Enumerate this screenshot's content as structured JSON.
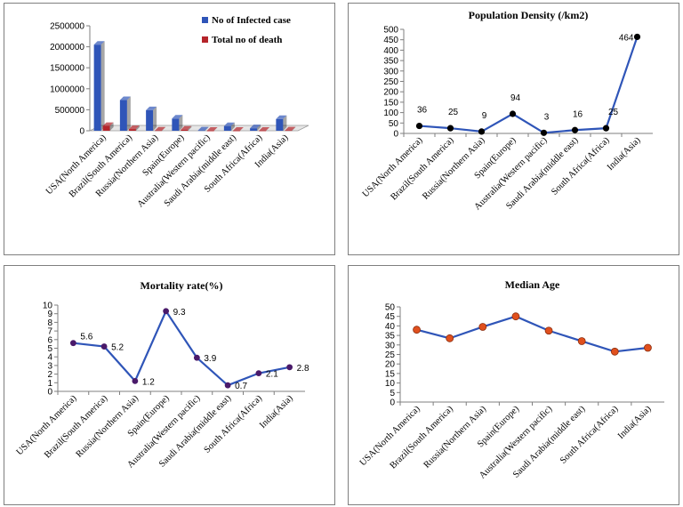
{
  "chart_data": [
    {
      "type": "bar",
      "title": "",
      "categories": [
        "USA(North America)",
        "Brazil(South America)",
        "Russia(Northern Asia)",
        "Spain(Europe)",
        "Australia(Western pacific)",
        "Saudi Arabia(middle east)",
        "South Africa(Africa)",
        "India(Asia)"
      ],
      "series": [
        {
          "name": "No of Infected case",
          "color": "#2f55b8",
          "values": [
            2050000,
            730000,
            490000,
            290000,
            8000,
            110000,
            60000,
            280000
          ]
        },
        {
          "name": "Total no of death",
          "color": "#b5242a",
          "values": [
            115000,
            40000,
            6000,
            27000,
            100,
            900,
            1300,
            8000
          ]
        }
      ],
      "yticks": [
        0,
        500000,
        1000000,
        1500000,
        2000000,
        2500000
      ],
      "ylim": [
        0,
        2500000
      ],
      "legend": "top-right",
      "xlabel": "",
      "ylabel": ""
    },
    {
      "type": "line",
      "title": "Population  Density (/km2)",
      "categories": [
        "USA(North America)",
        "Brazil(South America)",
        "Russia(Northern Asia)",
        "Spain(Europe)",
        "Australia(Western pacific)",
        "Saudi Arabia(middle east)",
        "South Africa(Africa)",
        "India(Asia)"
      ],
      "values": [
        36,
        25,
        9,
        94,
        3,
        16,
        25,
        464
      ],
      "labels": [
        "36",
        "25",
        "9",
        "94",
        "3",
        "16",
        "25",
        "464"
      ],
      "yticks": [
        0,
        50,
        100,
        150,
        200,
        250,
        300,
        350,
        400,
        450,
        500
      ],
      "ylim": [
        0,
        500
      ],
      "line_color": "#2f55b8",
      "marker_color": "#000000"
    },
    {
      "type": "line",
      "title": "Mortality rate(%)",
      "categories": [
        "USA(North America)",
        "Brazil(South America)",
        "Russia(Northern Asia)",
        "Spain(Europe)",
        "Australia(Western pacific)",
        "Saudi Arabia(middle east)",
        "South Africa(Africa)",
        "India(Asia)"
      ],
      "values": [
        5.6,
        5.2,
        1.2,
        9.3,
        3.9,
        0.7,
        2.1,
        2.8
      ],
      "labels": [
        "5.6",
        "5.2",
        "1.2",
        "9.3",
        "3.9",
        "0.7",
        "2.1",
        "2.8"
      ],
      "yticks": [
        0,
        1,
        2,
        3,
        4,
        5,
        6,
        7,
        8,
        9,
        10
      ],
      "ylim": [
        0,
        10
      ],
      "line_color": "#2f55b8",
      "marker_color": "#4a1a6a"
    },
    {
      "type": "line",
      "title": "Median Age",
      "categories": [
        "USA(North America)",
        "Brazil(South America)",
        "Russia(Northern Asia)",
        "Spain(Europe)",
        "Australia(Western pacific)",
        "Saudi Arabia(middle east)",
        "South Africa(Africa)",
        "India(Asia)"
      ],
      "values": [
        38,
        33.5,
        39.5,
        45,
        37.5,
        32,
        26.5,
        28.5
      ],
      "yticks": [
        0,
        5,
        10,
        15,
        20,
        25,
        30,
        35,
        40,
        45,
        50
      ],
      "ylim": [
        0,
        50
      ],
      "line_color": "#2f55b8",
      "marker_color": "#e0501e"
    }
  ]
}
